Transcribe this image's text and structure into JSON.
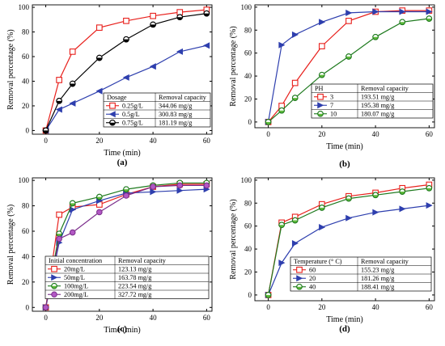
{
  "chart_data": [
    {
      "type": "line",
      "panel_label": "(a)",
      "xlabel": "Time (min)",
      "ylabel": "Removal percentage (%)",
      "xlim": [
        -5,
        62
      ],
      "ylim": [
        -3,
        102
      ],
      "xticks": [
        0,
        20,
        40,
        60
      ],
      "yticks": [
        0,
        20,
        40,
        60,
        80,
        100
      ],
      "legend": {
        "header": [
          "Dosage",
          "Removal capacity"
        ],
        "placement": "lower-right"
      },
      "x": [
        0,
        5,
        10,
        20,
        30,
        40,
        50,
        60
      ],
      "series": [
        {
          "name": "0.25g/L",
          "capacity": "344.06 mg/g",
          "marker": "square",
          "color": "#e8201c",
          "fill": "#ffffff",
          "values": [
            0,
            41,
            64,
            83.5,
            89,
            93,
            96,
            98
          ]
        },
        {
          "name": "0.5g/L",
          "capacity": "300.83 mg/g",
          "marker": "triangle-left",
          "color": "#2e3fae",
          "fill": "#2e3fae",
          "values": [
            0,
            17,
            22,
            32,
            43,
            52,
            64,
            69
          ]
        },
        {
          "name": "0.75g/L",
          "capacity": "181.19 mg/g",
          "marker": "half-circle",
          "color": "#000000",
          "fill": "#000000",
          "values": [
            0,
            24,
            38,
            59,
            74,
            86,
            92,
            95
          ]
        }
      ]
    },
    {
      "type": "line",
      "panel_label": "(b)",
      "xlabel": "Time (min)",
      "ylabel": "Removal percentage (%)",
      "xlim": [
        -5,
        62
      ],
      "ylim": [
        -5,
        102
      ],
      "xticks": [
        0,
        20,
        40,
        60
      ],
      "yticks": [
        0,
        20,
        40,
        60,
        80,
        100
      ],
      "legend": {
        "header": [
          "PH",
          "Removal capacity"
        ],
        "placement": "lower-right"
      },
      "x": [
        0,
        5,
        10,
        20,
        30,
        40,
        50,
        60
      ],
      "series": [
        {
          "name": "3",
          "capacity": "193.51 mg/g",
          "marker": "square",
          "color": "#e8201c",
          "fill": "#ffffff",
          "values": [
            0,
            14,
            34,
            66,
            88,
            96,
            97,
            97
          ]
        },
        {
          "name": "7",
          "capacity": "195.38 mg/g",
          "marker": "triangle-right",
          "color": "#2e3fae",
          "fill": "#2e3fae",
          "values": [
            0,
            67,
            76,
            87,
            95,
            96,
            96,
            96
          ]
        },
        {
          "name": "10",
          "capacity": "180.07 mg/g",
          "marker": "half-circle",
          "color": "#1e7a1e",
          "fill": "#5fba3c",
          "values": [
            0,
            10,
            21,
            41,
            57,
            74,
            87,
            90
          ]
        }
      ]
    },
    {
      "type": "line",
      "panel_label": "(c)",
      "xlabel": "Time (min)",
      "ylabel": "Removal percentage (%)",
      "xlim": [
        -5,
        62
      ],
      "ylim": [
        -3,
        102
      ],
      "xticks": [
        0,
        20,
        40,
        60
      ],
      "yticks": [
        0,
        20,
        40,
        60,
        80,
        100
      ],
      "legend": {
        "header": [
          "Initial concentration",
          "Removal capacity"
        ],
        "placement": "lower-right"
      },
      "x": [
        0,
        5,
        10,
        20,
        30,
        40,
        50,
        60
      ],
      "series": [
        {
          "name": "20mg/L",
          "capacity": "123.13 mg/g",
          "marker": "square",
          "color": "#e8201c",
          "fill": "#ffffff",
          "values": [
            0,
            73,
            79,
            81,
            89,
            95,
            97,
            97
          ]
        },
        {
          "name": "50mg/L",
          "capacity": "163.78 mg/g",
          "marker": "triangle-right",
          "color": "#2e3fae",
          "fill": "#2e3fae",
          "values": [
            0,
            51,
            77,
            84,
            90,
            91,
            92,
            93
          ]
        },
        {
          "name": "100mg/L",
          "capacity": "223.54 mg/g",
          "marker": "half-circle",
          "color": "#1e7a1e",
          "fill": "#5fba3c",
          "values": [
            0,
            58,
            82,
            87,
            93,
            96,
            98,
            98
          ]
        },
        {
          "name": "200mg/L",
          "capacity": "327.72 mg/g",
          "marker": "circle",
          "color": "#7b2d8b",
          "fill": "#b258c4",
          "values": [
            0,
            54,
            59,
            75,
            88,
            95,
            96,
            96
          ]
        }
      ]
    },
    {
      "type": "line",
      "panel_label": "(d)",
      "xlabel": "Time (min)",
      "ylabel": "Removal percentage (%)",
      "xlim": [
        -5,
        62
      ],
      "ylim": [
        -5,
        102
      ],
      "xticks": [
        0,
        20,
        40,
        60
      ],
      "yticks": [
        0,
        20,
        40,
        60,
        80,
        100
      ],
      "legend": {
        "header": [
          "Temperature (° C)",
          "Removal capacity"
        ],
        "placement": "lower-right"
      },
      "x": [
        0,
        5,
        10,
        20,
        30,
        40,
        50,
        60
      ],
      "series": [
        {
          "name": "60",
          "capacity": "155.23 mg/g",
          "marker": "square",
          "color": "#e8201c",
          "fill": "#ffffff",
          "values": [
            0,
            63,
            68,
            79,
            86,
            89,
            93,
            96
          ]
        },
        {
          "name": "20",
          "capacity": "181.26 mg/g",
          "marker": "triangle-right",
          "color": "#2e3fae",
          "fill": "#2e3fae",
          "values": [
            0,
            28,
            45,
            59,
            67,
            72,
            75,
            78
          ]
        },
        {
          "name": "40",
          "capacity": "188.41 mg/g",
          "marker": "half-circle",
          "color": "#1e7a1e",
          "fill": "#5fba3c",
          "values": [
            0,
            61,
            65,
            76,
            84,
            87,
            90,
            93
          ]
        }
      ]
    }
  ]
}
